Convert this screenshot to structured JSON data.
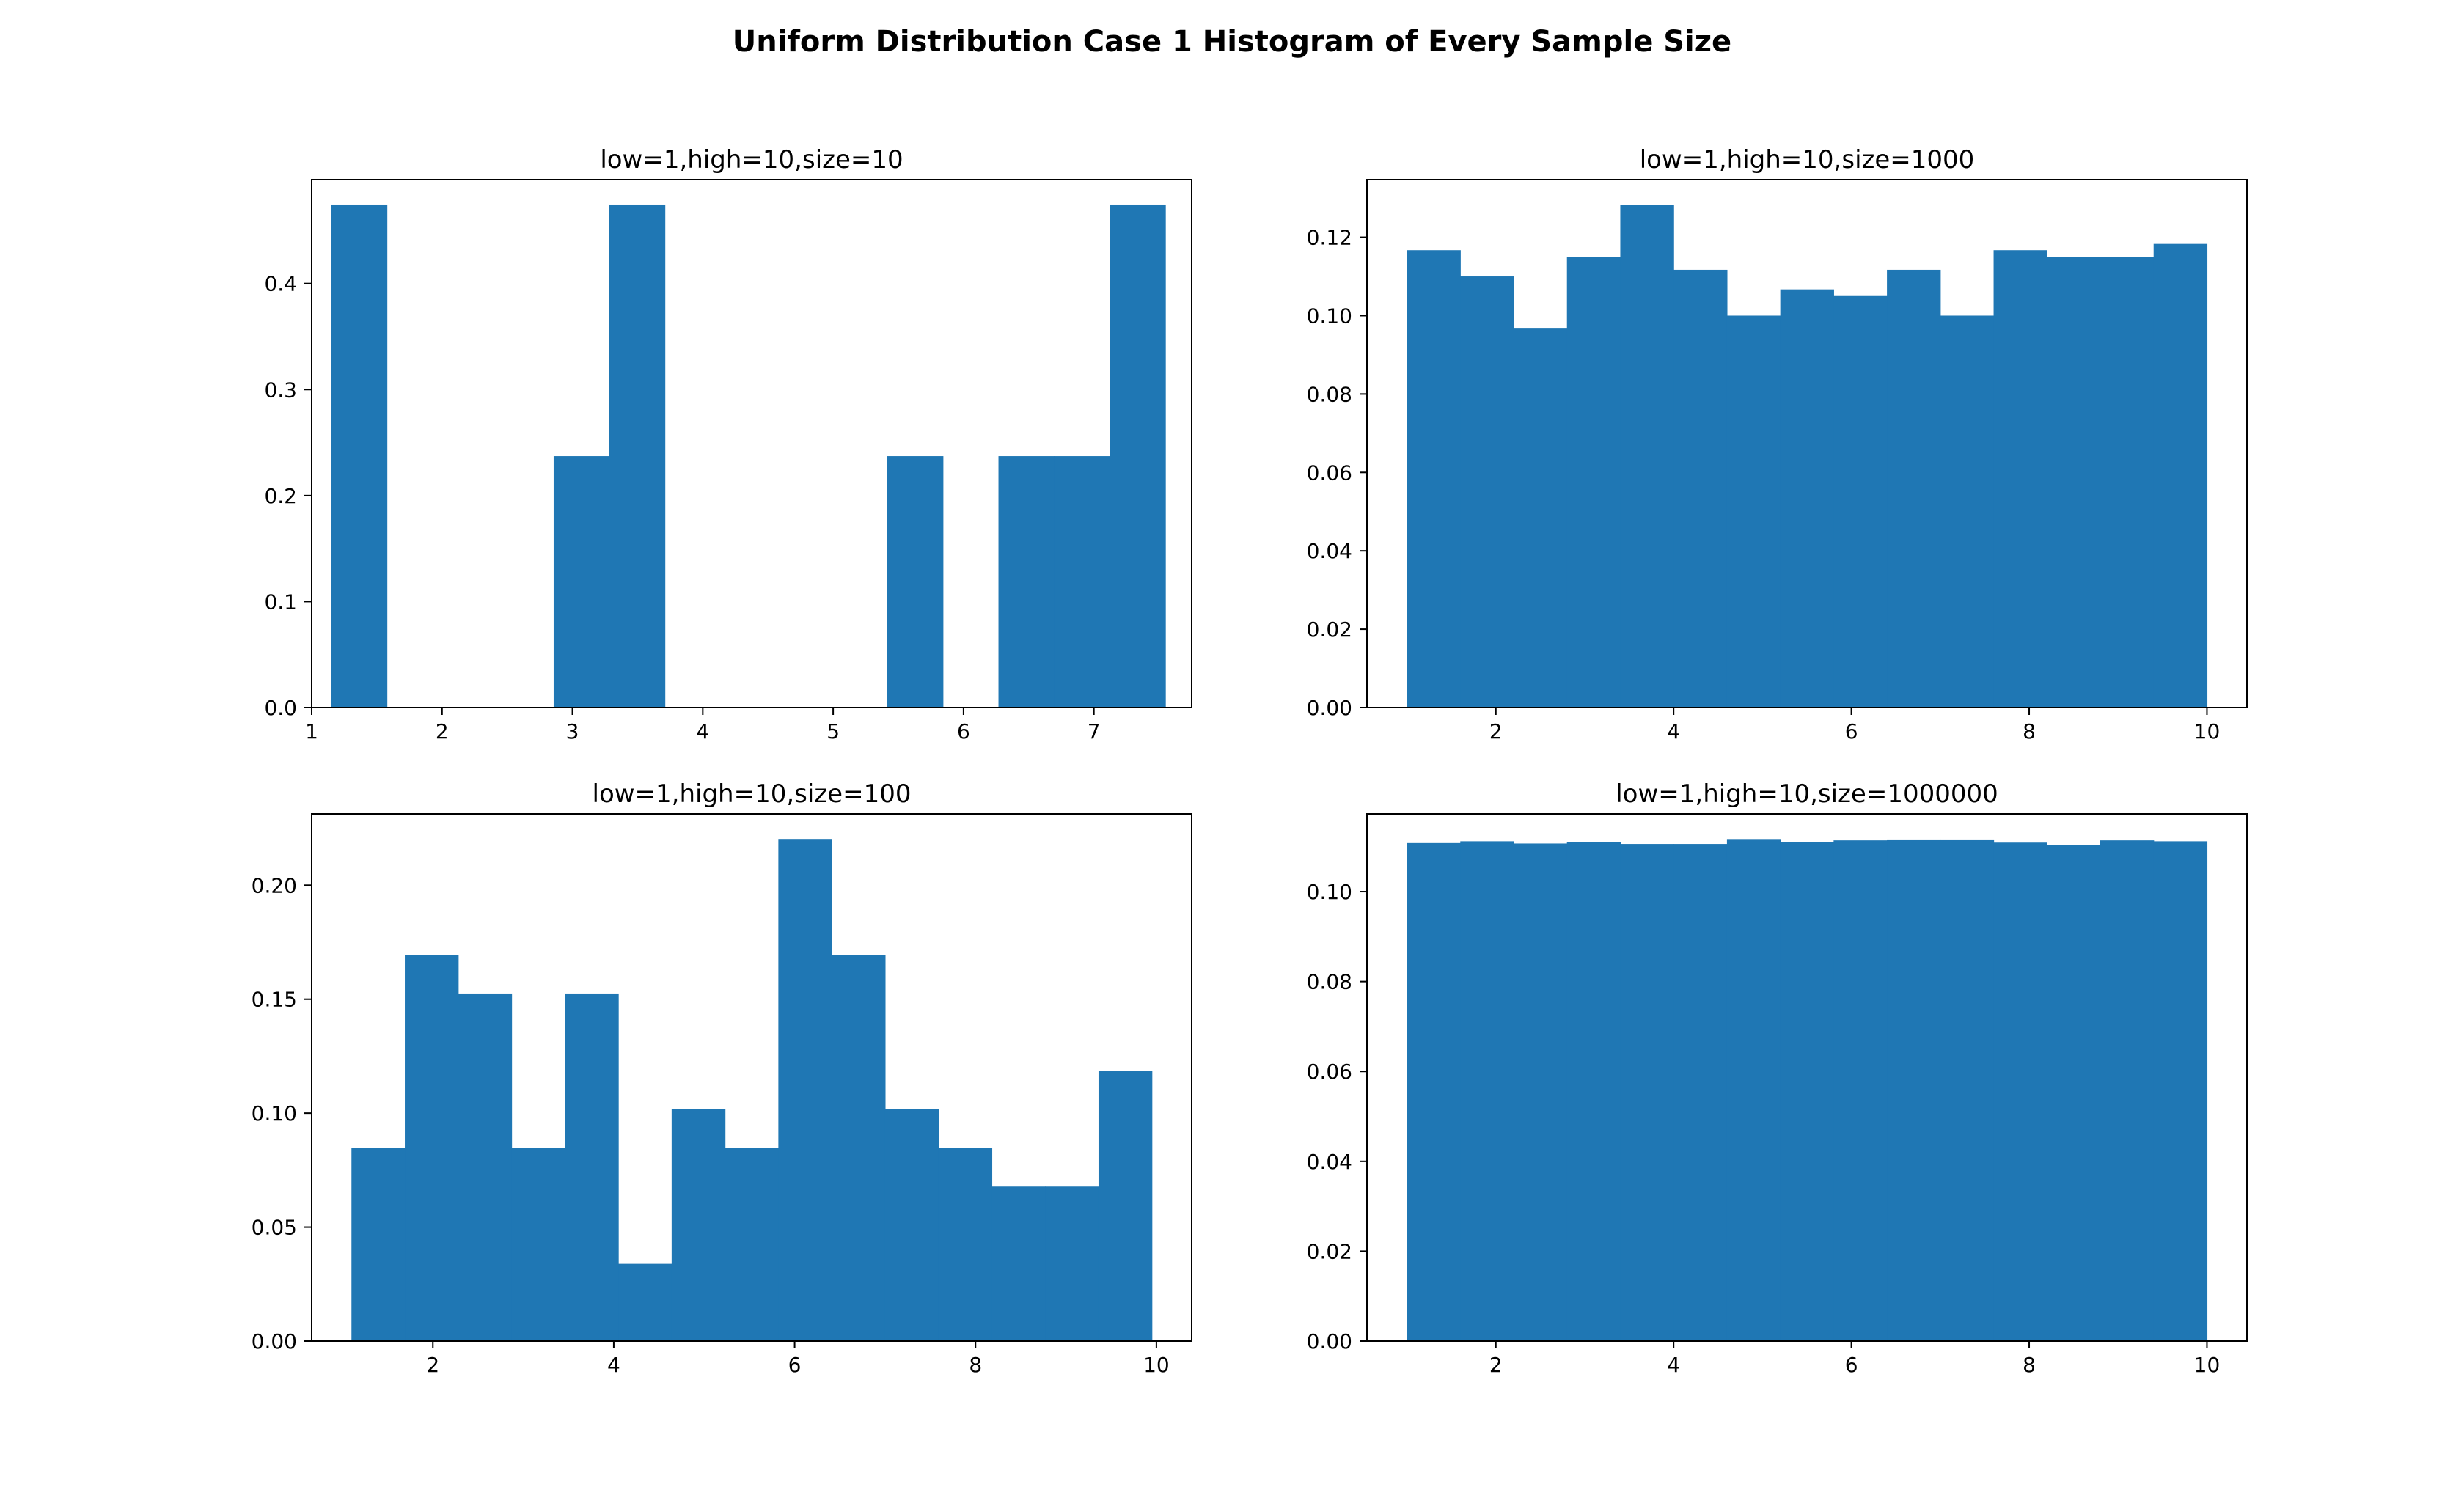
{
  "figure": {
    "title": "Uniform Distribution Case 1 Histogram of Every Sample Size",
    "bar_color": "#1f77b4"
  },
  "chart_data": [
    {
      "type": "bar",
      "subtitle": "low=1,high=10,size=10",
      "bin_edges": [
        1.15,
        1.577,
        2.003,
        2.43,
        2.856,
        3.283,
        3.709,
        4.136,
        4.562,
        4.989,
        5.415,
        5.842,
        6.268,
        6.695,
        7.121,
        7.548
      ],
      "values": [
        0.4745,
        0,
        0,
        0,
        0.2372,
        0.4745,
        0,
        0,
        0,
        0,
        0.2372,
        0,
        0.2372,
        0.2372,
        0.4745
      ],
      "xlim": [
        1.0,
        7.75
      ],
      "ylim": [
        0,
        0.498
      ],
      "xticks": [
        1,
        2,
        3,
        4,
        5,
        6,
        7
      ],
      "yticks": [
        0.0,
        0.1,
        0.2,
        0.3,
        0.4
      ],
      "ytick_labels": [
        "0.0",
        "0.1",
        "0.2",
        "0.3",
        "0.4"
      ],
      "grid": false,
      "legend": "none"
    },
    {
      "type": "bar",
      "subtitle": "low=1,high=10,size=1000",
      "bin_edges": [
        1.0,
        1.6,
        2.2,
        2.8,
        3.4,
        4.0,
        4.6,
        5.2,
        5.8,
        6.4,
        7.0,
        7.6,
        8.2,
        8.8,
        9.4,
        10.0
      ],
      "values": [
        0.1167,
        0.11,
        0.0967,
        0.115,
        0.1283,
        0.1117,
        0.1,
        0.1067,
        0.105,
        0.1117,
        0.1,
        0.1167,
        0.115,
        0.115,
        0.1183
      ],
      "xlim": [
        0.55,
        10.45
      ],
      "ylim": [
        0,
        0.1347
      ],
      "xticks": [
        2,
        4,
        6,
        8,
        10
      ],
      "yticks": [
        0.0,
        0.02,
        0.04,
        0.06,
        0.08,
        0.1,
        0.12
      ],
      "ytick_labels": [
        "0.00",
        "0.02",
        "0.04",
        "0.06",
        "0.08",
        "0.10",
        "0.12"
      ],
      "grid": false,
      "legend": "none"
    },
    {
      "type": "bar",
      "subtitle": "low=1,high=10,size=100",
      "bin_edges": [
        1.1,
        1.69,
        2.28,
        2.87,
        3.46,
        4.05,
        4.64,
        5.23,
        5.82,
        6.41,
        7.0,
        7.59,
        8.18,
        8.77,
        9.36,
        9.95
      ],
      "values": [
        0.0847,
        0.1695,
        0.1525,
        0.0847,
        0.1525,
        0.0339,
        0.1017,
        0.0847,
        0.2203,
        0.1695,
        0.1017,
        0.0847,
        0.0678,
        0.0678,
        0.1186
      ],
      "xlim": [
        0.66,
        10.39
      ],
      "ylim": [
        0,
        0.2313
      ],
      "xticks": [
        2,
        4,
        6,
        8,
        10
      ],
      "yticks": [
        0.0,
        0.05,
        0.1,
        0.15,
        0.2
      ],
      "ytick_labels": [
        "0.00",
        "0.05",
        "0.10",
        "0.15",
        "0.20"
      ],
      "grid": false,
      "legend": "none"
    },
    {
      "type": "bar",
      "subtitle": "low=1,high=10,size=1000000",
      "bin_edges": [
        1.0,
        1.6,
        2.2,
        2.8,
        3.4,
        4.0,
        4.6,
        5.2,
        5.8,
        6.4,
        7.0,
        7.6,
        8.2,
        8.8,
        9.4,
        10.0
      ],
      "values": [
        0.1108,
        0.1112,
        0.1107,
        0.1111,
        0.1106,
        0.1106,
        0.1117,
        0.111,
        0.1114,
        0.1116,
        0.1116,
        0.1109,
        0.1104,
        0.1114,
        0.1112
      ],
      "xlim": [
        0.55,
        10.45
      ],
      "ylim": [
        0,
        0.1173
      ],
      "xticks": [
        2,
        4,
        6,
        8,
        10
      ],
      "yticks": [
        0.0,
        0.02,
        0.04,
        0.06,
        0.08,
        0.1
      ],
      "ytick_labels": [
        "0.00",
        "0.02",
        "0.04",
        "0.06",
        "0.08",
        "0.10"
      ],
      "grid": false,
      "legend": "none"
    }
  ]
}
